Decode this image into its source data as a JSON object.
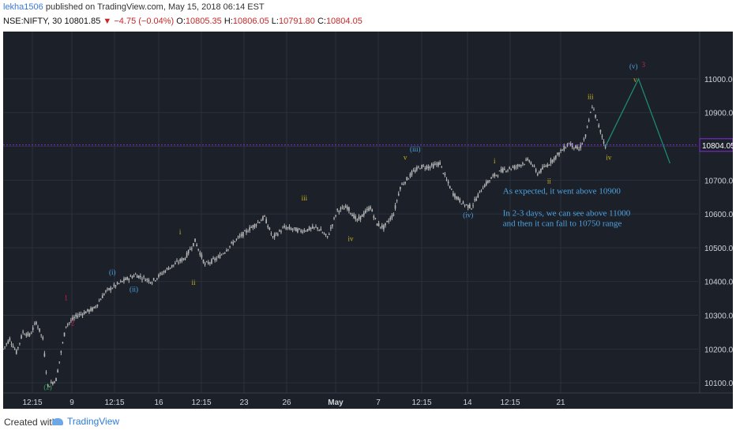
{
  "header": {
    "author": "lekha1506",
    "published": "published on TradingView.com, May 15, 2018 06:14 EST",
    "symbol": "NSE:NIFTY, 30",
    "last": "10801.85",
    "change": "−4.75 (−0.04%)",
    "open_label": "O:",
    "open": "10805.35",
    "high_label": "H:",
    "high": "10806.05",
    "low_label": "L:",
    "low": "10791.80",
    "close_label": "C:",
    "close": "10804.05"
  },
  "footer": {
    "created_with": "Created with",
    "brand": "TradingView"
  },
  "colors": {
    "background": "#1b2029",
    "grid": "#2b313d",
    "candle": "#b8b8b8",
    "price_line": "#8a2be2",
    "projection": "#1f8a70",
    "note": "#4fa3e0",
    "wave_blue": "#4fa3e0",
    "wave_yellow": "#c9b21a",
    "wave_red": "#d02050",
    "wave_green": "#3aa05a"
  },
  "chart_data": {
    "type": "candlestick",
    "ylim": [
      10070,
      11140
    ],
    "y_ticks": [
      "10100.00",
      "10200.00",
      "10300.00",
      "10400.00",
      "10500.00",
      "10600.00",
      "10700.00",
      "10800.00",
      "10900.00",
      "11000.00"
    ],
    "x_ticks": [
      "12:15",
      "9",
      "12:15",
      "16",
      "12:15",
      "23",
      "26",
      "May",
      "7",
      "12:15",
      "14",
      "12:15",
      "21"
    ],
    "current_price": "10804.05",
    "price_path": [
      [
        0,
        10200
      ],
      [
        4,
        10230
      ],
      [
        8,
        10190
      ],
      [
        12,
        10250
      ],
      [
        16,
        10240
      ],
      [
        20,
        10280
      ],
      [
        24,
        10230
      ],
      [
        27,
        10090
      ],
      [
        32,
        10110
      ],
      [
        38,
        10270
      ],
      [
        45,
        10300
      ],
      [
        55,
        10320
      ],
      [
        62,
        10370
      ],
      [
        72,
        10400
      ],
      [
        80,
        10420
      ],
      [
        90,
        10400
      ],
      [
        100,
        10440
      ],
      [
        110,
        10470
      ],
      [
        116,
        10520
      ],
      [
        122,
        10450
      ],
      [
        130,
        10470
      ],
      [
        140,
        10520
      ],
      [
        150,
        10560
      ],
      [
        158,
        10590
      ],
      [
        163,
        10530
      ],
      [
        170,
        10560
      ],
      [
        180,
        10550
      ],
      [
        190,
        10560
      ],
      [
        196,
        10530
      ],
      [
        202,
        10610
      ],
      [
        208,
        10620
      ],
      [
        214,
        10580
      ],
      [
        222,
        10620
      ],
      [
        226,
        10570
      ],
      [
        230,
        10560
      ],
      [
        236,
        10600
      ],
      [
        240,
        10680
      ],
      [
        247,
        10720
      ],
      [
        252,
        10740
      ],
      [
        258,
        10740
      ],
      [
        264,
        10750
      ],
      [
        268,
        10700
      ],
      [
        272,
        10660
      ],
      [
        278,
        10630
      ],
      [
        283,
        10620
      ],
      [
        290,
        10680
      ],
      [
        296,
        10710
      ],
      [
        302,
        10730
      ],
      [
        310,
        10740
      ],
      [
        318,
        10760
      ],
      [
        323,
        10720
      ],
      [
        330,
        10750
      ],
      [
        336,
        10780
      ],
      [
        342,
        10810
      ],
      [
        348,
        10790
      ],
      [
        352,
        10830
      ],
      [
        356,
        10920
      ],
      [
        360,
        10860
      ],
      [
        364,
        10800
      ]
    ],
    "projection": [
      [
        364,
        10800
      ],
      [
        384,
        11000
      ],
      [
        403,
        10750
      ]
    ],
    "wave_labels": [
      {
        "text": "(2)",
        "x": 27,
        "y": 10080,
        "color": "wave_green"
      },
      {
        "text": "1",
        "x": 38,
        "y": 10345,
        "color": "wave_red"
      },
      {
        "text": "2",
        "x": 42,
        "y": 10270,
        "color": "wave_red"
      },
      {
        "text": "(i)",
        "x": 66,
        "y": 10420,
        "color": "wave_blue"
      },
      {
        "text": "(ii)",
        "x": 79,
        "y": 10370,
        "color": "wave_blue"
      },
      {
        "text": "i",
        "x": 107,
        "y": 10540,
        "color": "wave_yellow"
      },
      {
        "text": "ii",
        "x": 115,
        "y": 10390,
        "color": "wave_yellow"
      },
      {
        "text": "iii",
        "x": 182,
        "y": 10640,
        "color": "wave_yellow"
      },
      {
        "text": "iv",
        "x": 210,
        "y": 10520,
        "color": "wave_yellow"
      },
      {
        "text": "v",
        "x": 243,
        "y": 10760,
        "color": "wave_yellow"
      },
      {
        "text": "(iii)",
        "x": 249,
        "y": 10785,
        "color": "wave_blue"
      },
      {
        "text": "(iv)",
        "x": 281,
        "y": 10590,
        "color": "wave_blue"
      },
      {
        "text": "i",
        "x": 297,
        "y": 10750,
        "color": "wave_yellow"
      },
      {
        "text": "ii",
        "x": 330,
        "y": 10690,
        "color": "wave_yellow"
      },
      {
        "text": "iii",
        "x": 355,
        "y": 10940,
        "color": "wave_yellow"
      },
      {
        "text": "iv",
        "x": 366,
        "y": 10760,
        "color": "wave_yellow"
      },
      {
        "text": "(v)",
        "x": 381,
        "y": 11030,
        "color": "wave_blue"
      },
      {
        "text": "3",
        "x": 387,
        "y": 11035,
        "color": "wave_red"
      },
      {
        "text": "v",
        "x": 382,
        "y": 10990,
        "color": "wave_yellow"
      }
    ],
    "annotations": [
      "As expected, it went above 10900",
      "In 2-3 days, we can see above 11000",
      "and then it can fall to 10750 range"
    ]
  }
}
